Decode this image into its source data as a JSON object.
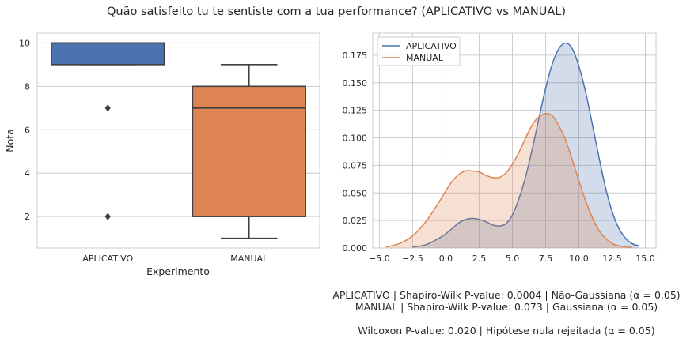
{
  "figure": {
    "suptitle": "Quão satisfeito tu te sentiste com a tua performance? (APLICATIVO vs MANUAL)"
  },
  "colors": {
    "aplicativo": "#4c72b0",
    "manual": "#dd8452",
    "grid": "#cccccc",
    "axes_edge": "#cccccc",
    "box_edge": "#3f3f3f"
  },
  "chart_data": [
    {
      "type": "box",
      "xlabel": "Experimento",
      "ylabel": "Nota",
      "categories": [
        "APLICATIVO",
        "MANUAL"
      ],
      "ylim": [
        0.55,
        10.45
      ],
      "yticks": [
        "2",
        "4",
        "6",
        "8",
        "10"
      ],
      "grid": true,
      "boxes": [
        {
          "category": "APLICATIVO",
          "whisker_low": 9,
          "q1": 9,
          "median": 10,
          "q3": 10,
          "whisker_high": 10,
          "outliers": [
            7,
            2
          ],
          "color": "#4c72b0"
        },
        {
          "category": "MANUAL",
          "whisker_low": 1,
          "q1": 2,
          "median": 7,
          "q3": 8,
          "whisker_high": 9,
          "outliers": [],
          "color": "#dd8452"
        }
      ]
    },
    {
      "type": "area",
      "subtype": "kde",
      "xlim": [
        -5.5,
        15.8
      ],
      "ylim": [
        0,
        0.195
      ],
      "xticks": [
        "−5.0",
        "−2.5",
        "0.0",
        "2.5",
        "5.0",
        "7.5",
        "10.0",
        "12.5",
        "15.0"
      ],
      "yticks": [
        "0.000",
        "0.025",
        "0.050",
        "0.075",
        "0.100",
        "0.125",
        "0.150",
        "0.175"
      ],
      "grid": true,
      "legend_position": "top-left",
      "series": [
        {
          "name": "APLICATIVO",
          "color": "#4c72b0",
          "x": [
            -2.5,
            -1.5,
            -0.5,
            0.0,
            0.5,
            1.0,
            1.5,
            2.0,
            2.5,
            3.0,
            3.5,
            4.0,
            4.5,
            5.0,
            5.5,
            6.0,
            6.5,
            7.0,
            7.5,
            8.0,
            8.5,
            9.0,
            9.5,
            10.0,
            10.5,
            11.0,
            11.5,
            12.0,
            12.5,
            13.0,
            13.5,
            14.0,
            14.5
          ],
          "y": [
            0.001,
            0.003,
            0.009,
            0.013,
            0.018,
            0.023,
            0.026,
            0.027,
            0.026,
            0.024,
            0.021,
            0.02,
            0.022,
            0.03,
            0.045,
            0.065,
            0.09,
            0.118,
            0.145,
            0.167,
            0.181,
            0.186,
            0.181,
            0.165,
            0.142,
            0.113,
            0.083,
            0.055,
            0.033,
            0.018,
            0.009,
            0.004,
            0.002
          ]
        },
        {
          "name": "MANUAL",
          "color": "#dd8452",
          "x": [
            -4.5,
            -3.5,
            -2.5,
            -1.5,
            -0.5,
            0.0,
            0.5,
            1.0,
            1.5,
            2.0,
            2.5,
            3.0,
            3.5,
            4.0,
            4.5,
            5.0,
            5.5,
            6.0,
            6.5,
            7.0,
            7.5,
            8.0,
            8.5,
            9.0,
            9.5,
            10.0,
            10.5,
            11.0,
            11.5,
            12.0,
            12.5,
            13.0,
            14.0
          ],
          "y": [
            0.001,
            0.004,
            0.011,
            0.024,
            0.042,
            0.052,
            0.061,
            0.067,
            0.07,
            0.07,
            0.069,
            0.066,
            0.064,
            0.064,
            0.068,
            0.076,
            0.087,
            0.1,
            0.112,
            0.119,
            0.122,
            0.12,
            0.111,
            0.098,
            0.08,
            0.061,
            0.043,
            0.028,
            0.016,
            0.009,
            0.004,
            0.002,
            0.0005
          ]
        }
      ]
    }
  ],
  "stats_text": {
    "line1": "APLICATIVO | Shapiro-Wilk P-value: 0.0004 | Não-Gaussiana (α = 0.05)",
    "line2": "MANUAL | Shapiro-Wilk P-value: 0.073 | Gaussiana (α = 0.05)",
    "line3": "Wilcoxon P-value: 0.020 | Hipótese nula rejeitada (α = 0.05)"
  }
}
